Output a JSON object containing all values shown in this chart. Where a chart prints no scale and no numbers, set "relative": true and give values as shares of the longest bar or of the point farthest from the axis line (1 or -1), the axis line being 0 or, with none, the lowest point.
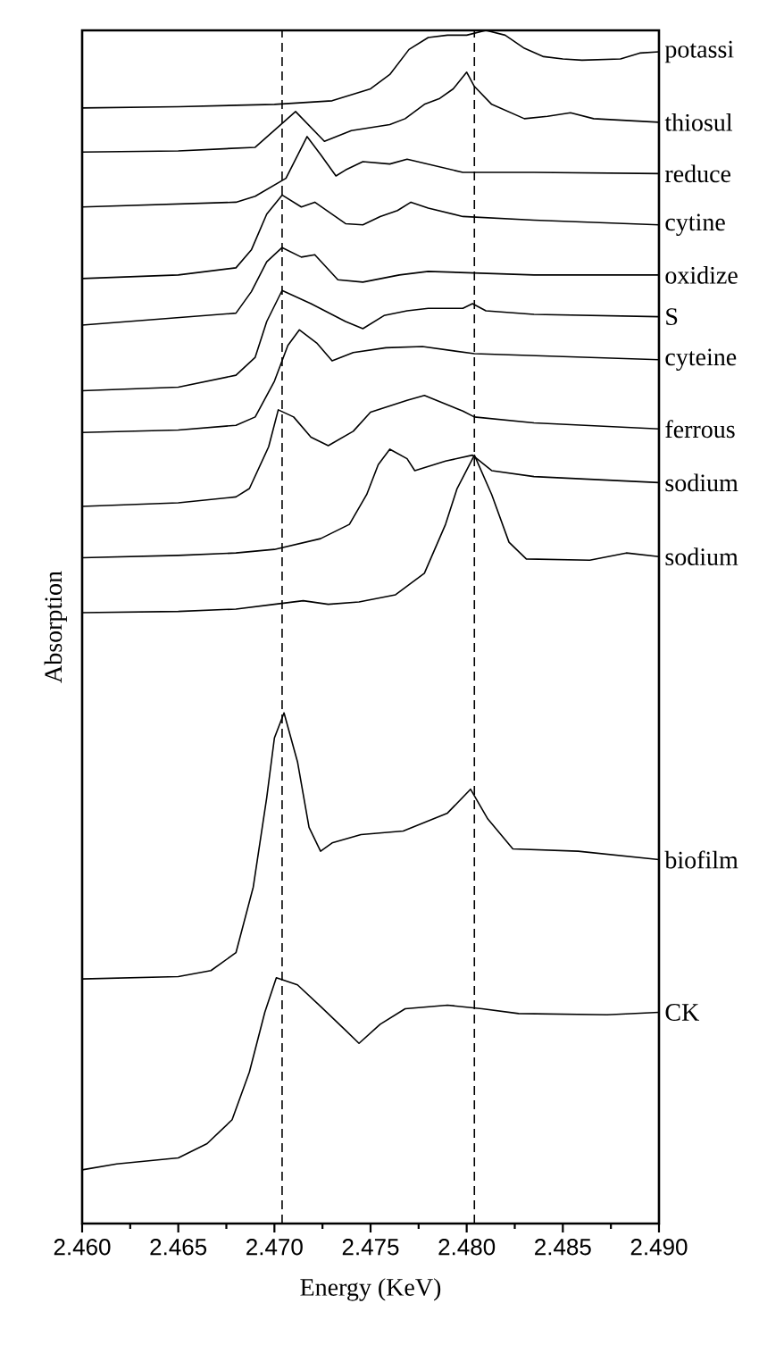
{
  "chart_data": {
    "type": "line",
    "relative": true,
    "xlabel": "Energy (KeV)",
    "ylabel": "Absorption",
    "xlim": [
      2.46,
      2.49
    ],
    "xticks": [
      {
        "value": 2.46,
        "label": "2.460"
      },
      {
        "value": 2.465,
        "label": "2.465"
      },
      {
        "value": 2.47,
        "label": "2.470"
      },
      {
        "value": 2.475,
        "label": "2.475"
      },
      {
        "value": 2.48,
        "label": "2.480"
      },
      {
        "value": 2.485,
        "label": "2.485"
      },
      {
        "value": 2.49,
        "label": "2.490"
      }
    ],
    "ref_lines": [
      {
        "axis": "x",
        "value": 2.4704,
        "line_style": "dashed"
      },
      {
        "axis": "x",
        "value": 2.4804,
        "line_style": "dashed"
      }
    ],
    "series": [
      {
        "name": "potassi",
        "color": "#000000",
        "x": [
          2.46,
          2.465,
          2.47,
          2.473,
          2.475,
          2.476,
          2.477,
          2.478,
          2.479,
          2.48,
          2.481,
          2.482,
          2.483,
          2.484,
          2.485,
          2.486,
          2.488,
          2.489,
          2.49
        ],
        "values": [
          0.935,
          0.936,
          0.938,
          0.941,
          0.951,
          0.963,
          0.984,
          0.994,
          0.996,
          0.996,
          1.0,
          0.996,
          0.985,
          0.978,
          0.976,
          0.975,
          0.976,
          0.981,
          0.982
        ]
      },
      {
        "name": "thiosul",
        "color": "#000000",
        "x": [
          2.46,
          2.465,
          2.469,
          2.4711,
          2.4726,
          2.474,
          2.476,
          2.4768,
          2.4778,
          2.4786,
          2.4793,
          2.48,
          2.4804,
          2.4813,
          2.483,
          2.4842,
          2.4854,
          2.4866,
          2.49
        ],
        "values": [
          0.898,
          0.899,
          0.902,
          0.932,
          0.907,
          0.916,
          0.921,
          0.926,
          0.938,
          0.943,
          0.951,
          0.965,
          0.953,
          0.938,
          0.926,
          0.928,
          0.931,
          0.926,
          0.923
        ]
      },
      {
        "name": "reduce",
        "color": "#000000",
        "x": [
          2.46,
          2.468,
          2.469,
          2.4706,
          2.4717,
          2.4724,
          2.4732,
          2.4737,
          2.4746,
          2.476,
          2.4769,
          2.4798,
          2.4835,
          2.49
        ],
        "values": [
          0.852,
          0.856,
          0.861,
          0.876,
          0.911,
          0.896,
          0.878,
          0.883,
          0.89,
          0.888,
          0.892,
          0.881,
          0.881,
          0.88
        ]
      },
      {
        "name": "cytine",
        "color": "#000000",
        "x": [
          2.46,
          2.465,
          2.468,
          2.4688,
          2.4696,
          2.4704,
          2.4714,
          2.4721,
          2.4737,
          2.4746,
          2.4755,
          2.4764,
          2.4771,
          2.478,
          2.4798,
          2.4835,
          2.49
        ],
        "values": [
          0.792,
          0.795,
          0.801,
          0.816,
          0.846,
          0.862,
          0.852,
          0.856,
          0.838,
          0.837,
          0.844,
          0.849,
          0.856,
          0.851,
          0.844,
          0.841,
          0.837
        ]
      },
      {
        "name": "oxidize",
        "color": "#000000",
        "x": [
          2.46,
          2.468,
          2.4688,
          2.4696,
          2.4704,
          2.4714,
          2.4721,
          2.4733,
          2.4746,
          2.4765,
          2.478,
          2.4835,
          2.49
        ],
        "values": [
          0.753,
          0.763,
          0.781,
          0.806,
          0.818,
          0.81,
          0.812,
          0.791,
          0.789,
          0.795,
          0.798,
          0.795,
          0.795
        ]
      },
      {
        "name": "S",
        "color": "#000000",
        "x": [
          2.46,
          2.465,
          2.468,
          2.469,
          2.4696,
          2.4704,
          2.4719,
          2.4737,
          2.4746,
          2.4757,
          2.4769,
          2.478,
          2.4798,
          2.4803,
          2.481,
          2.4835,
          2.49
        ],
        "values": [
          0.698,
          0.701,
          0.711,
          0.726,
          0.756,
          0.782,
          0.771,
          0.756,
          0.75,
          0.761,
          0.765,
          0.767,
          0.767,
          0.771,
          0.765,
          0.762,
          0.76
        ]
      },
      {
        "name": "cyteine",
        "color": "#000000",
        "x": [
          2.46,
          2.465,
          2.468,
          2.469,
          2.47,
          2.4707,
          2.4713,
          2.4722,
          2.473,
          2.4741,
          2.4758,
          2.4777,
          2.4804,
          2.49
        ],
        "values": [
          0.663,
          0.665,
          0.669,
          0.676,
          0.706,
          0.736,
          0.749,
          0.738,
          0.723,
          0.73,
          0.734,
          0.735,
          0.729,
          0.724
        ]
      },
      {
        "name": "ferrous",
        "color": "#000000",
        "x": [
          2.46,
          2.465,
          2.468,
          2.4687,
          2.4697,
          2.4702,
          2.471,
          2.4719,
          2.4728,
          2.4741,
          2.475,
          2.4769,
          2.4778,
          2.4798,
          2.4804,
          2.4835,
          2.49
        ],
        "values": [
          0.601,
          0.604,
          0.609,
          0.616,
          0.651,
          0.682,
          0.676,
          0.659,
          0.652,
          0.664,
          0.68,
          0.69,
          0.694,
          0.681,
          0.676,
          0.671,
          0.666
        ]
      },
      {
        "name": "sodium",
        "color": "#000000",
        "x": [
          2.46,
          2.465,
          2.468,
          2.47,
          2.4724,
          2.4739,
          2.4748,
          2.4754,
          2.476,
          2.4769,
          2.4773,
          2.4789,
          2.4803,
          2.4813,
          2.4835,
          2.49
        ],
        "values": [
          0.558,
          0.56,
          0.562,
          0.565,
          0.574,
          0.586,
          0.611,
          0.636,
          0.649,
          0.641,
          0.631,
          0.639,
          0.644,
          0.631,
          0.626,
          0.621
        ]
      },
      {
        "name": "sodium",
        "color": "#000000",
        "x": [
          2.46,
          2.465,
          2.468,
          2.47,
          2.4715,
          2.4728,
          2.4744,
          2.4763,
          2.4778,
          2.4789,
          2.4795,
          2.4804,
          2.4813,
          2.4822,
          2.4831,
          2.4864,
          2.4883,
          2.49
        ],
        "values": [
          0.512,
          0.513,
          0.515,
          0.519,
          0.522,
          0.519,
          0.521,
          0.527,
          0.545,
          0.586,
          0.616,
          0.644,
          0.611,
          0.571,
          0.557,
          0.556,
          0.562,
          0.559
        ]
      },
      {
        "name": "biofilm",
        "color": "#000000",
        "x": [
          2.46,
          2.465,
          2.4667,
          2.468,
          2.4689,
          2.4696,
          2.47,
          2.4705,
          2.4712,
          2.4718,
          2.4724,
          2.473,
          2.4745,
          2.4767,
          2.479,
          2.4802,
          2.4811,
          2.4824,
          2.4858,
          2.49
        ],
        "values": [
          0.205,
          0.207,
          0.212,
          0.227,
          0.282,
          0.357,
          0.407,
          0.428,
          0.387,
          0.332,
          0.312,
          0.319,
          0.326,
          0.329,
          0.344,
          0.364,
          0.339,
          0.314,
          0.312,
          0.305
        ]
      },
      {
        "name": "CK",
        "color": "#000000",
        "x": [
          2.46,
          2.4618,
          2.465,
          2.4665,
          2.4678,
          2.4687,
          2.4695,
          2.4701,
          2.4712,
          2.4724,
          2.4737,
          2.4744,
          2.4755,
          2.4768,
          2.479,
          2.4808,
          2.4827,
          2.4873,
          2.49
        ],
        "values": [
          0.045,
          0.05,
          0.055,
          0.067,
          0.087,
          0.127,
          0.177,
          0.206,
          0.2,
          0.182,
          0.162,
          0.151,
          0.167,
          0.18,
          0.183,
          0.18,
          0.176,
          0.175,
          0.177
        ]
      }
    ]
  }
}
